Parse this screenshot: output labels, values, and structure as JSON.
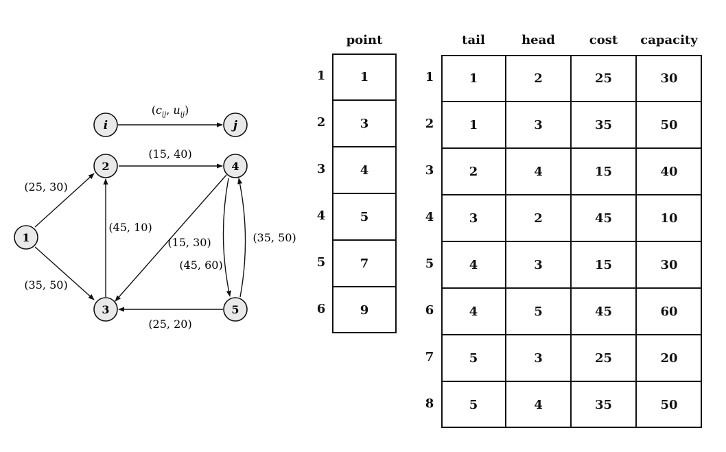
{
  "legend": {
    "from_node": "i",
    "to_node": "j",
    "label_c": "c",
    "label_u": "u",
    "label_sub": "ij"
  },
  "nodes": [
    {
      "id": "1",
      "label": "1"
    },
    {
      "id": "2",
      "label": "2"
    },
    {
      "id": "3",
      "label": "3"
    },
    {
      "id": "4",
      "label": "4"
    },
    {
      "id": "5",
      "label": "5"
    }
  ],
  "edges": [
    {
      "from": "1",
      "to": "2",
      "label": "(25, 30)"
    },
    {
      "from": "1",
      "to": "3",
      "label": "(35, 50)"
    },
    {
      "from": "2",
      "to": "4",
      "label": "(15, 40)"
    },
    {
      "from": "3",
      "to": "2",
      "label": "(45, 10)"
    },
    {
      "from": "4",
      "to": "3",
      "label": "(15, 30)"
    },
    {
      "from": "4",
      "to": "5",
      "label": "(45, 60)"
    },
    {
      "from": "5",
      "to": "3",
      "label": "(25, 20)"
    },
    {
      "from": "5",
      "to": "4",
      "label": "(35, 50)"
    }
  ],
  "point_table": {
    "header": "point",
    "indices": [
      "1",
      "2",
      "3",
      "4",
      "5",
      "6"
    ],
    "values": [
      "1",
      "3",
      "4",
      "5",
      "7",
      "9"
    ]
  },
  "arc_table": {
    "headers": [
      "tail",
      "head",
      "cost",
      "capacity"
    ],
    "indices": [
      "1",
      "2",
      "3",
      "4",
      "5",
      "6",
      "7",
      "8"
    ],
    "rows": [
      [
        "1",
        "2",
        "25",
        "30"
      ],
      [
        "1",
        "3",
        "35",
        "50"
      ],
      [
        "2",
        "4",
        "15",
        "40"
      ],
      [
        "3",
        "2",
        "45",
        "10"
      ],
      [
        "4",
        "3",
        "15",
        "30"
      ],
      [
        "4",
        "5",
        "45",
        "60"
      ],
      [
        "5",
        "3",
        "25",
        "20"
      ],
      [
        "5",
        "4",
        "35",
        "50"
      ]
    ]
  }
}
